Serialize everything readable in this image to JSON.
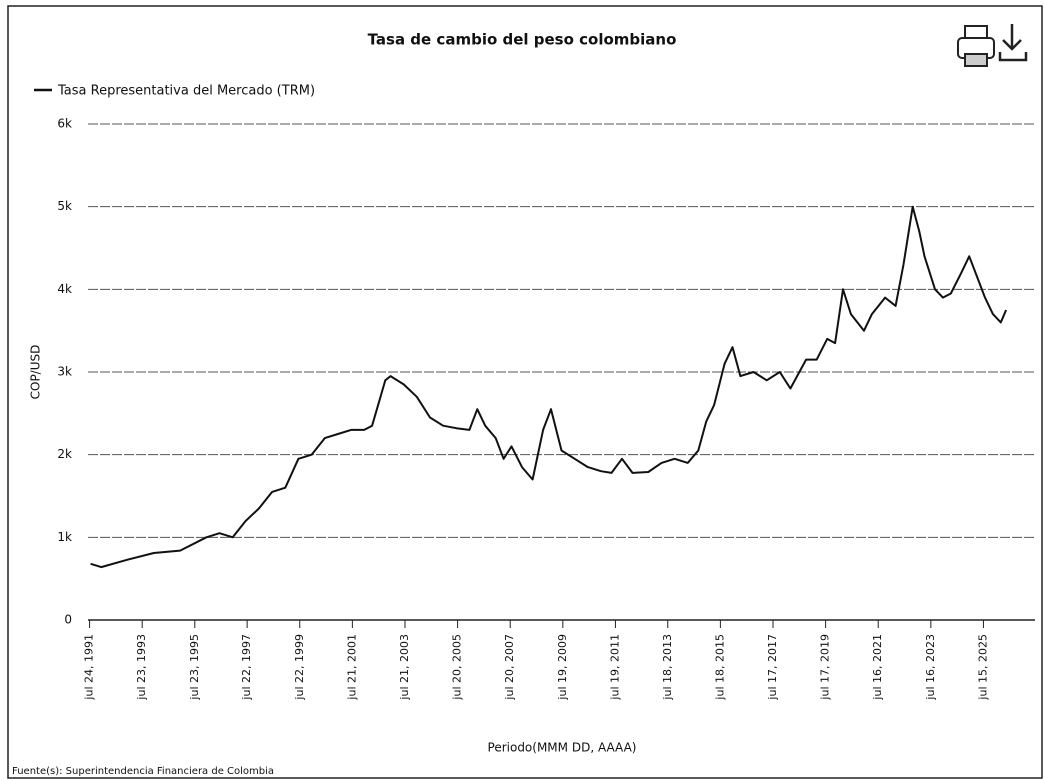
{
  "chart_data": {
    "type": "line",
    "title": "Tasa de cambio del peso colombiano",
    "x_label": "Periodo(MMM DD, AAAA)",
    "y_label": "COP/USD",
    "source": "Fuente(s): Superintendencia Financiera de Colombia",
    "legend": "top-left",
    "grid": true,
    "x": [
      1991.6,
      1992,
      1993,
      1994,
      1995,
      1996,
      1996.5,
      1997,
      1997.5,
      1998,
      1998.5,
      1999,
      1999.5,
      2000,
      2000.5,
      2001,
      2001.5,
      2002,
      2002.3,
      2002.8,
      2003,
      2003.5,
      2004,
      2004.5,
      2005,
      2005.5,
      2006,
      2006.3,
      2006.6,
      2007,
      2007.3,
      2007.6,
      2008,
      2008.4,
      2008.8,
      2009.1,
      2009.5,
      2010,
      2010.5,
      2011,
      2011.4,
      2011.8,
      2012.2,
      2012.8,
      2013.3,
      2013.8,
      2014.3,
      2014.7,
      2015,
      2015.3,
      2015.7,
      2016,
      2016.3,
      2016.8,
      2017.3,
      2017.8,
      2018.2,
      2018.8,
      2019.2,
      2019.6,
      2019.9,
      2020.2,
      2020.5,
      2021,
      2021.3,
      2021.8,
      2022.2,
      2022.5,
      2022.85,
      2023.1,
      2023.3,
      2023.7,
      2024,
      2024.3,
      2024.7,
      2025,
      2025.3,
      2025.6,
      2025.9,
      2026.2,
      2026.4
    ],
    "series": [
      {
        "name": "Tasa Representativa del Mercado (TRM)",
        "color": "#111111",
        "values": [
          680,
          640,
          730,
          810,
          840,
          1000,
          1050,
          1000,
          1200,
          1350,
          1550,
          1600,
          1950,
          2000,
          2200,
          2250,
          2300,
          2300,
          2350,
          2900,
          2950,
          2850,
          2700,
          2450,
          2350,
          2320,
          2300,
          2550,
          2350,
          2200,
          1950,
          2100,
          1850,
          1700,
          2300,
          2550,
          2050,
          1950,
          1850,
          1800,
          1780,
          1950,
          1780,
          1790,
          1900,
          1950,
          1900,
          2050,
          2400,
          2600,
          3100,
          3300,
          2950,
          3000,
          2900,
          3000,
          2800,
          3150,
          3150,
          3400,
          3350,
          4000,
          3700,
          3500,
          3700,
          3900,
          3800,
          4300,
          5000,
          4700,
          4400,
          4000,
          3900,
          3950,
          4200,
          4400,
          4150,
          3900,
          3700,
          3600,
          3750
        ]
      }
    ],
    "xlim": [
      1991.5,
      2027.5
    ],
    "xticks": [
      {
        "value": 1991.56,
        "label": "jul 24, 1991"
      },
      {
        "value": 1993.56,
        "label": "jul 23, 1993"
      },
      {
        "value": 1995.56,
        "label": "jul 23, 1995"
      },
      {
        "value": 1997.55,
        "label": "jul 22, 1997"
      },
      {
        "value": 1999.55,
        "label": "jul 22, 1999"
      },
      {
        "value": 2001.55,
        "label": "jul 21, 2001"
      },
      {
        "value": 2003.55,
        "label": "jul 21, 2003"
      },
      {
        "value": 2005.55,
        "label": "jul 20, 2005"
      },
      {
        "value": 2007.55,
        "label": "jul 20, 2007"
      },
      {
        "value": 2009.55,
        "label": "jul 19, 2009"
      },
      {
        "value": 2011.55,
        "label": "jul 19, 2011"
      },
      {
        "value": 2013.54,
        "label": "jul 18, 2013"
      },
      {
        "value": 2015.54,
        "label": "jul 18, 2015"
      },
      {
        "value": 2017.54,
        "label": "jul 17, 2017"
      },
      {
        "value": 2019.54,
        "label": "jul 17, 2019"
      },
      {
        "value": 2021.54,
        "label": "jul 16, 2021"
      },
      {
        "value": 2023.54,
        "label": "jul 16, 2023"
      },
      {
        "value": 2025.54,
        "label": "jul 15, 2025"
      }
    ],
    "ylim": [
      0,
      6000
    ],
    "yticks": [
      0,
      {
        "value": 1000,
        "label": "1k"
      },
      {
        "value": 2000,
        "label": "2k"
      },
      {
        "value": 3000,
        "label": "3k"
      },
      {
        "value": 4000,
        "label": "4k"
      },
      {
        "value": 5000,
        "label": "5k"
      },
      {
        "value": 6000,
        "label": "6k"
      }
    ]
  }
}
